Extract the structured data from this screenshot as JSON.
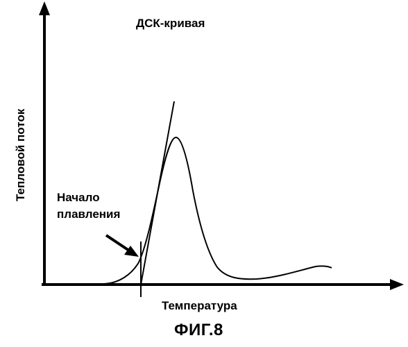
{
  "diagram": {
    "title": "ДСК-кривая",
    "y_axis_label": "Тепловой поток",
    "x_axis_label": "Температура",
    "annotation": {
      "line1": "Начало",
      "line2": "плавления"
    },
    "caption": "ФИГ.8"
  }
}
